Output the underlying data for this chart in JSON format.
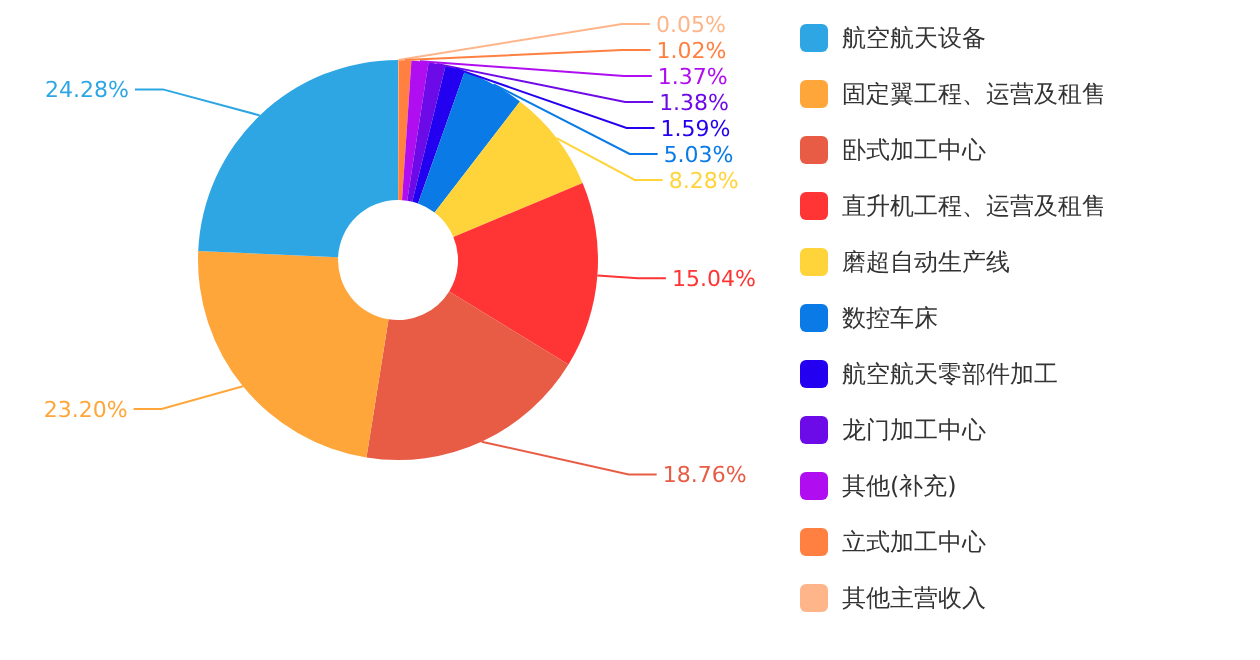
{
  "chart_data": {
    "type": "donut",
    "categories": [
      "航空航天设备",
      "固定翼工程、运营及租售",
      "卧式加工中心",
      "直升机工程、运营及租售",
      "磨超自动生产线",
      "数控车床",
      "航空航天零部件加工",
      "龙门加工中心",
      "其他(补充)",
      "立式加工中心",
      "其他主营收入"
    ],
    "values": [
      24.28,
      23.2,
      18.76,
      15.04,
      8.28,
      5.03,
      1.59,
      1.38,
      1.37,
      1.02,
      0.05
    ],
    "colors": [
      "#2ea6e3",
      "#ffa63a",
      "#e85c45",
      "#ff3535",
      "#ffd43a",
      "#0a7be6",
      "#2400f0",
      "#6d0ae8",
      "#b00ef0",
      "#ff8040",
      "#ffb58a"
    ],
    "value_labels": [
      "24.28%",
      "23.20%",
      "18.76%",
      "15.04%",
      "8.28%",
      "5.03%",
      "1.59%",
      "1.38%",
      "1.37%",
      "1.02%",
      "0.05%"
    ],
    "legend": "right"
  }
}
